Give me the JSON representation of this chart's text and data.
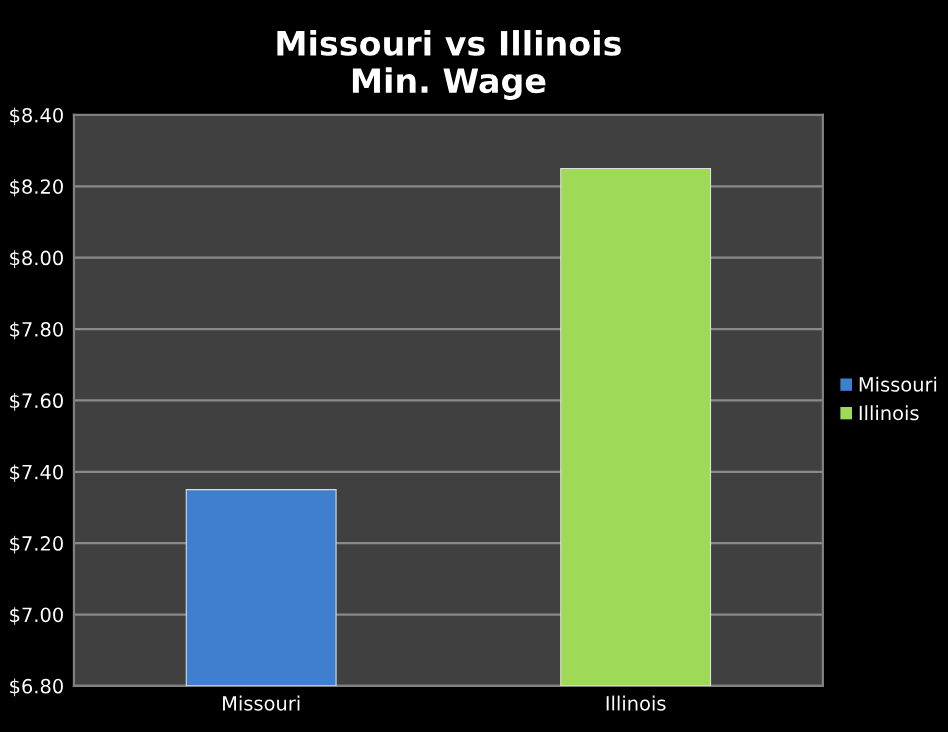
{
  "chart_data": {
    "type": "bar",
    "title": "Missouri vs Illinois\nMin. Wage",
    "categories": [
      "Missouri",
      "Illinois"
    ],
    "series": [
      {
        "name": "Missouri",
        "color": "#3f7fd0",
        "values": [
          7.35,
          null
        ]
      },
      {
        "name": "Illinois",
        "color": "#9ed957",
        "values": [
          null,
          8.25
        ]
      }
    ],
    "ylim": [
      6.8,
      8.4
    ],
    "yticks": [
      {
        "value": 6.8,
        "label": "$6.80"
      },
      {
        "value": 7.0,
        "label": "$7.00"
      },
      {
        "value": 7.2,
        "label": "$7.20"
      },
      {
        "value": 7.4,
        "label": "$7.40"
      },
      {
        "value": 7.6,
        "label": "$7.60"
      },
      {
        "value": 7.8,
        "label": "$7.80"
      },
      {
        "value": 8.0,
        "label": "$8.00"
      },
      {
        "value": 8.2,
        "label": "$8.20"
      },
      {
        "value": 8.4,
        "label": "$8.40"
      }
    ],
    "grid": "y",
    "legend": "right"
  }
}
